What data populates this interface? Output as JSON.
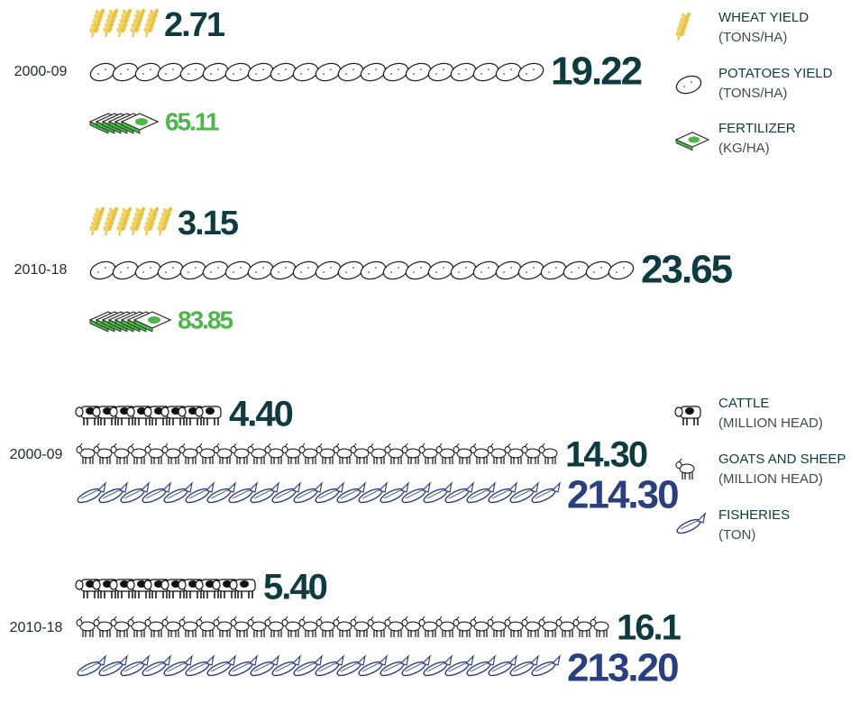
{
  "chart_data": [
    {
      "type": "pictogram",
      "categories": [
        "2000-09",
        "2010-18"
      ],
      "series": [
        {
          "name": "WHEAT YIELD",
          "unit": "(TONS/HA)",
          "color": "#0e3b40",
          "values": [
            2.71,
            3.15
          ]
        },
        {
          "name": "POTATOES YIELD",
          "unit": "(TONS/HA)",
          "color": "#0e3b40",
          "values": [
            19.22,
            23.65
          ]
        },
        {
          "name": "FERTILIZER",
          "unit": "(KG/HA)",
          "color": "#4cb648",
          "values": [
            65.11,
            83.85
          ]
        }
      ]
    },
    {
      "type": "pictogram",
      "categories": [
        "2000-09",
        "2010-18"
      ],
      "series": [
        {
          "name": "CATTLE",
          "unit": "(MILLION HEAD)",
          "color": "#0e3b40",
          "values": [
            4.4,
            5.4
          ],
          "value_labels": [
            "4.40",
            "5.40"
          ]
        },
        {
          "name": "GOATS AND SHEEP",
          "unit": "(MILLION HEAD)",
          "color": "#0e3b40",
          "values": [
            14.3,
            16.1
          ],
          "value_labels": [
            "14.30",
            "16.1"
          ]
        },
        {
          "name": "FISHERIES",
          "unit": "(TON)",
          "color": "#2a3f7f",
          "values": [
            214.3,
            213.2
          ],
          "value_labels": [
            "214.30",
            "213.20"
          ]
        }
      ]
    }
  ]
}
